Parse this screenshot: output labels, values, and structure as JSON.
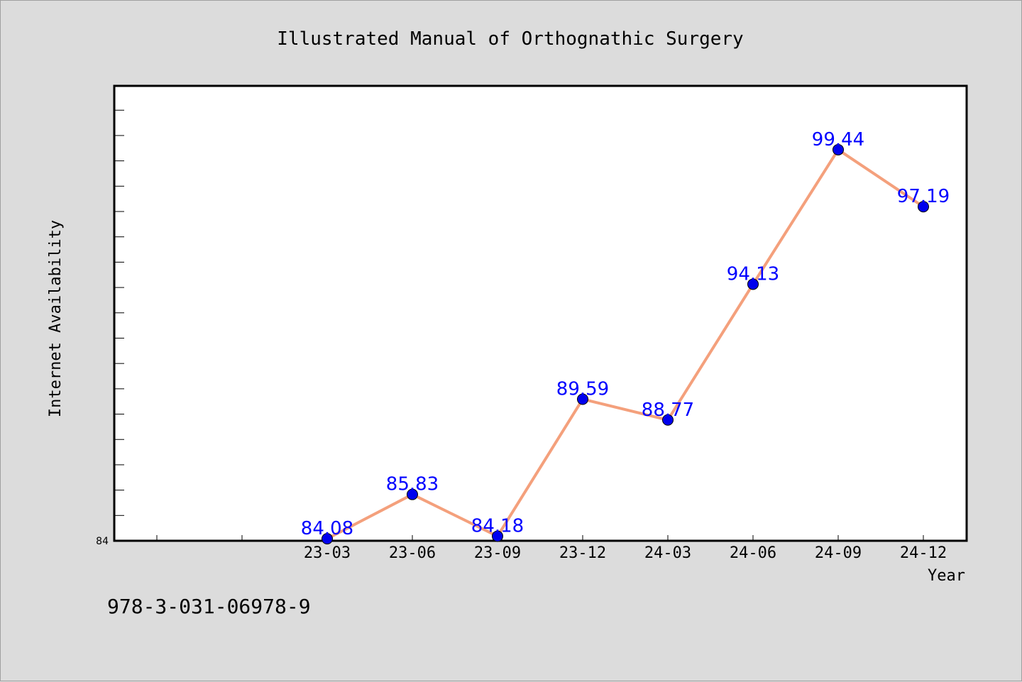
{
  "chart_data": {
    "type": "line",
    "title": "Illustrated Manual of Orthognathic Surgery",
    "xlabel": "Year",
    "ylabel": "Internet Availability",
    "categories": [
      "23-03",
      "23-06",
      "23-09",
      "23-12",
      "24-03",
      "24-06",
      "24-09",
      "24-12"
    ],
    "series": [
      {
        "values": [
          84.08,
          85.83,
          84.18,
          89.59,
          88.77,
          94.13,
          99.44,
          97.19
        ]
      }
    ],
    "data_labels": [
      "84.08",
      "85.83",
      "84.18",
      "89.59",
      "88.77",
      "94.13",
      "99.44",
      "97.19"
    ],
    "ylim": [
      84,
      101.96
    ],
    "y_tick_label": "84",
    "grid": false,
    "legend": "none",
    "colors": {
      "line": "#f4a07c",
      "marker": "#0000ee",
      "label": "#0000ff",
      "background": "#dcdcdc",
      "plot_bg": "#ffffff"
    }
  },
  "footer": {
    "isbn": "978-3-031-06978-9"
  }
}
